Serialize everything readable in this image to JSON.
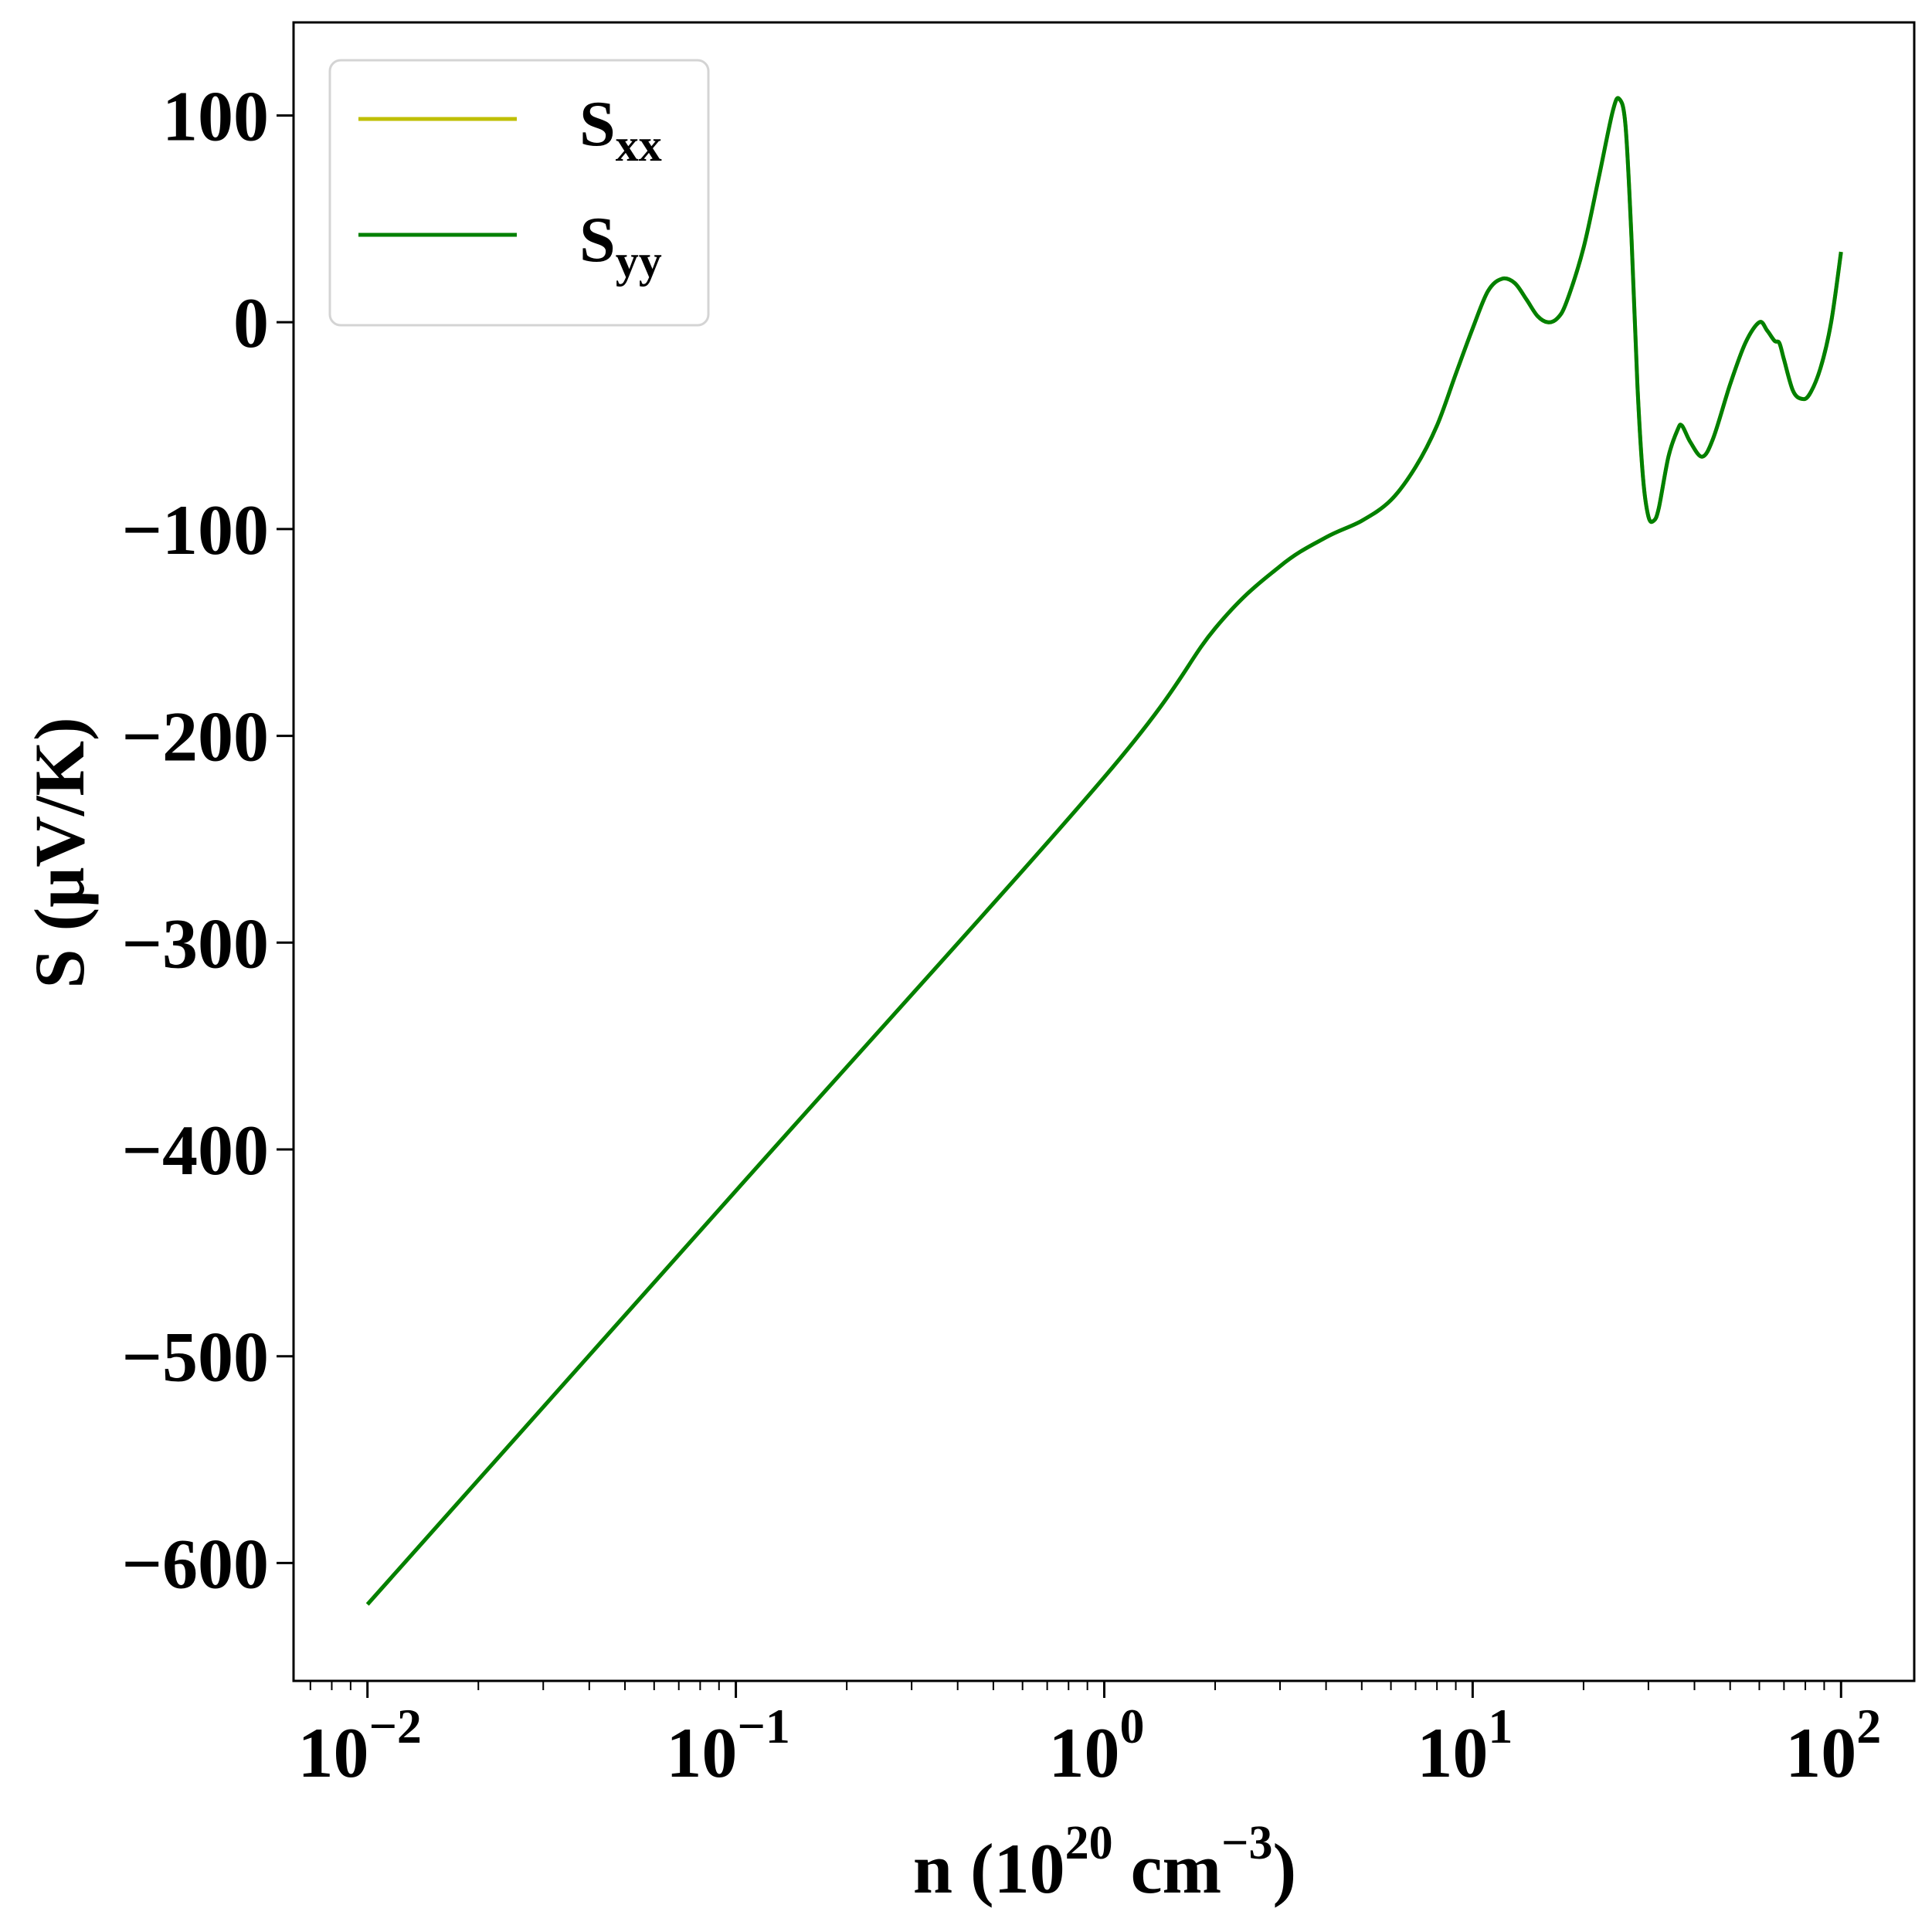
{
  "chart_data": {
    "type": "line",
    "title": "",
    "xlabel": "n (10^20 cm^-3)",
    "xlabel_parts": {
      "base": "n (10",
      "sup1": "20",
      "mid": " cm",
      "sup2": "−3",
      "end": ")"
    },
    "ylabel": "S (μV/K)",
    "xscale": "log",
    "xlim": [
      0.0063,
      158
    ],
    "ylim": [
      -657,
      145
    ],
    "grid": false,
    "legend_position": "top-left",
    "xticks": [
      {
        "value": 0.01,
        "base": "10",
        "exp": "−2"
      },
      {
        "value": 0.1,
        "base": "10",
        "exp": "−1"
      },
      {
        "value": 1,
        "base": "10",
        "exp": "0"
      },
      {
        "value": 10,
        "base": "10",
        "exp": "1"
      },
      {
        "value": 100,
        "base": "10",
        "exp": "2"
      }
    ],
    "yticks": [
      {
        "value": 100,
        "label": "100"
      },
      {
        "value": 0,
        "label": "0"
      },
      {
        "value": -100,
        "label": "−100"
      },
      {
        "value": -200,
        "label": "−200"
      },
      {
        "value": -300,
        "label": "−300"
      },
      {
        "value": -400,
        "label": "−400"
      },
      {
        "value": -500,
        "label": "−500"
      },
      {
        "value": -600,
        "label": "−600"
      }
    ],
    "x": [
      0.01,
      0.1,
      1,
      2,
      3,
      4,
      5,
      6,
      7,
      8,
      9,
      10,
      11,
      12,
      13,
      14,
      15,
      16,
      17,
      18,
      20,
      22,
      24,
      25,
      26,
      27,
      28,
      29,
      30,
      31,
      32,
      34,
      36,
      37,
      39,
      42,
      45,
      50,
      55,
      60,
      63,
      66,
      68,
      70,
      74,
      78,
      82,
      88,
      94,
      100
    ],
    "series": [
      {
        "name": "Sxx",
        "label_main": "S",
        "label_sub": "xx",
        "color": "#bfbf00",
        "values": [
          -620,
          -420,
          -220,
          -148,
          -118,
          -104,
          -96,
          -86,
          -70,
          -50,
          -25,
          -3,
          15,
          21,
          19,
          11,
          3,
          0,
          2,
          10,
          36,
          70,
          102,
          108,
          95,
          40,
          -30,
          -75,
          -94,
          -96,
          -90,
          -65,
          -52,
          -50,
          -58,
          -65,
          -56,
          -30,
          -10,
          0,
          -4,
          -9,
          -10,
          -18,
          -33,
          -37,
          -35,
          -22,
          0,
          34
        ]
      },
      {
        "name": "Syy",
        "label_main": "S",
        "label_sub": "yy",
        "color": "#008000",
        "values": [
          -620,
          -420,
          -220,
          -148,
          -118,
          -104,
          -96,
          -86,
          -70,
          -50,
          -25,
          -3,
          15,
          21,
          19,
          11,
          3,
          0,
          2,
          10,
          36,
          70,
          102,
          108,
          95,
          40,
          -30,
          -75,
          -94,
          -96,
          -90,
          -65,
          -52,
          -50,
          -58,
          -65,
          -56,
          -30,
          -10,
          0,
          -4,
          -9,
          -10,
          -18,
          -33,
          -37,
          -35,
          -22,
          0,
          34
        ]
      }
    ]
  }
}
